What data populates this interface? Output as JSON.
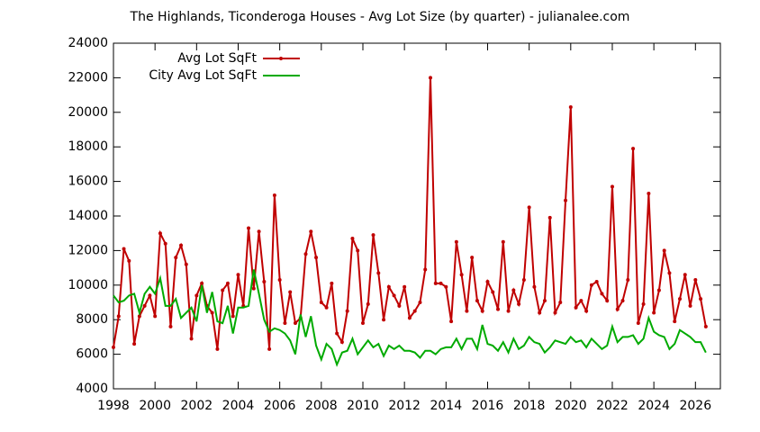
{
  "chart_data": {
    "type": "line",
    "title": "The Highlands, Ticonderoga Houses - Avg Lot Size (by quarter) - julianalee.com",
    "x": [
      1998,
      1998.25,
      1998.5,
      1998.75,
      1999,
      1999.25,
      1999.5,
      1999.75,
      2000,
      2000.25,
      2000.5,
      2000.75,
      2001,
      2001.25,
      2001.5,
      2001.75,
      2002,
      2002.25,
      2002.5,
      2002.75,
      2003,
      2003.25,
      2003.5,
      2003.75,
      2004,
      2004.25,
      2004.5,
      2004.75,
      2005,
      2005.25,
      2005.5,
      2005.75,
      2006,
      2006.25,
      2006.5,
      2006.75,
      2007,
      2007.25,
      2007.5,
      2007.75,
      2008,
      2008.25,
      2008.5,
      2008.75,
      2009,
      2009.25,
      2009.5,
      2009.75,
      2010,
      2010.25,
      2010.5,
      2010.75,
      2011,
      2011.25,
      2011.5,
      2011.75,
      2012,
      2012.25,
      2012.5,
      2012.75,
      2013,
      2013.25,
      2013.5,
      2013.75,
      2014,
      2014.25,
      2014.5,
      2014.75,
      2015,
      2015.25,
      2015.5,
      2015.75,
      2016,
      2016.25,
      2016.5,
      2016.75,
      2017,
      2017.25,
      2017.5,
      2017.75,
      2018,
      2018.25,
      2018.5,
      2018.75,
      2019,
      2019.25,
      2019.5,
      2019.75,
      2020,
      2020.25,
      2020.5,
      2020.75,
      2021,
      2021.25,
      2021.5,
      2021.75,
      2022,
      2022.25,
      2022.5,
      2022.75,
      2023,
      2023.25,
      2023.5,
      2023.75,
      2024,
      2024.25,
      2024.5,
      2024.75,
      2025,
      2025.25,
      2025.5,
      2025.75,
      2026,
      2026.25,
      2026.5
    ],
    "series": [
      {
        "name": "Avg Lot SqFt",
        "color": "#c00000",
        "markers": true,
        "values": [
          6400,
          8200,
          12100,
          11400,
          6600,
          8200,
          8800,
          9400,
          8200,
          13000,
          12400,
          7600,
          11600,
          12300,
          11200,
          6900,
          9400,
          10100,
          8800,
          8400,
          6300,
          9700,
          10100,
          8200,
          10600,
          8800,
          13300,
          9800,
          13100,
          10200,
          6300,
          15200,
          10300,
          7800,
          9600,
          7800,
          8100,
          11800,
          13100,
          11600,
          9000,
          8700,
          10100,
          7200,
          6700,
          8500,
          12700,
          12000,
          7800,
          8900,
          12900,
          10700,
          8000,
          9900,
          9400,
          8800,
          9900,
          8100,
          8500,
          9000,
          10900,
          22000,
          10100,
          10100,
          9900,
          7900,
          12500,
          10600,
          8500,
          11600,
          9100,
          8500,
          10200,
          9600,
          8600,
          12500,
          8500,
          9700,
          8900,
          10300,
          14500,
          9900,
          8400,
          9100,
          13900,
          8400,
          9000,
          14900,
          20300,
          8700,
          9100,
          8500,
          10000,
          10200,
          9500,
          9100,
          15700,
          8600,
          9100,
          10300,
          17900,
          7800,
          8900,
          15300,
          8400,
          9700,
          12000,
          10700,
          7900,
          9200,
          10600,
          8800,
          10300,
          9200,
          7600
        ]
      },
      {
        "name": "City Avg Lot SqFt",
        "color": "#00aa00",
        "markers": false,
        "values": [
          9400,
          9000,
          9100,
          9400,
          9500,
          8400,
          9500,
          9900,
          9500,
          10400,
          8800,
          8800,
          9200,
          8100,
          8400,
          8700,
          7900,
          10000,
          8400,
          9600,
          7900,
          7800,
          8800,
          7200,
          8700,
          8700,
          8800,
          10900,
          9500,
          8000,
          7300,
          7500,
          7400,
          7200,
          6800,
          6000,
          8300,
          7000,
          8200,
          6500,
          5700,
          6600,
          6300,
          5400,
          6100,
          6200,
          6900,
          6000,
          6400,
          6800,
          6400,
          6600,
          5900,
          6500,
          6300,
          6500,
          6200,
          6200,
          6100,
          5800,
          6200,
          6200,
          6000,
          6300,
          6400,
          6400,
          6900,
          6300,
          6900,
          6900,
          6300,
          7700,
          6600,
          6500,
          6200,
          6700,
          6100,
          6900,
          6300,
          6500,
          7000,
          6700,
          6600,
          6100,
          6400,
          6800,
          6700,
          6600,
          7000,
          6700,
          6800,
          6400,
          6900,
          6600,
          6300,
          6500,
          7600,
          6700,
          7000,
          7000,
          7100,
          6600,
          6900,
          8100,
          7300,
          7100,
          7000,
          6300,
          6600,
          7400,
          7200,
          7000,
          6700,
          6700,
          6100
        ]
      }
    ],
    "xlim": [
      1998,
      2027.2
    ],
    "xticks": [
      1998,
      2000,
      2002,
      2004,
      2006,
      2008,
      2010,
      2012,
      2014,
      2016,
      2018,
      2020,
      2022,
      2024,
      2026
    ],
    "ylim": [
      4000,
      24000
    ],
    "yticks": [
      4000,
      6000,
      8000,
      10000,
      12000,
      14000,
      16000,
      18000,
      20000,
      22000,
      24000
    ],
    "grid": false,
    "legend": "top-left"
  }
}
